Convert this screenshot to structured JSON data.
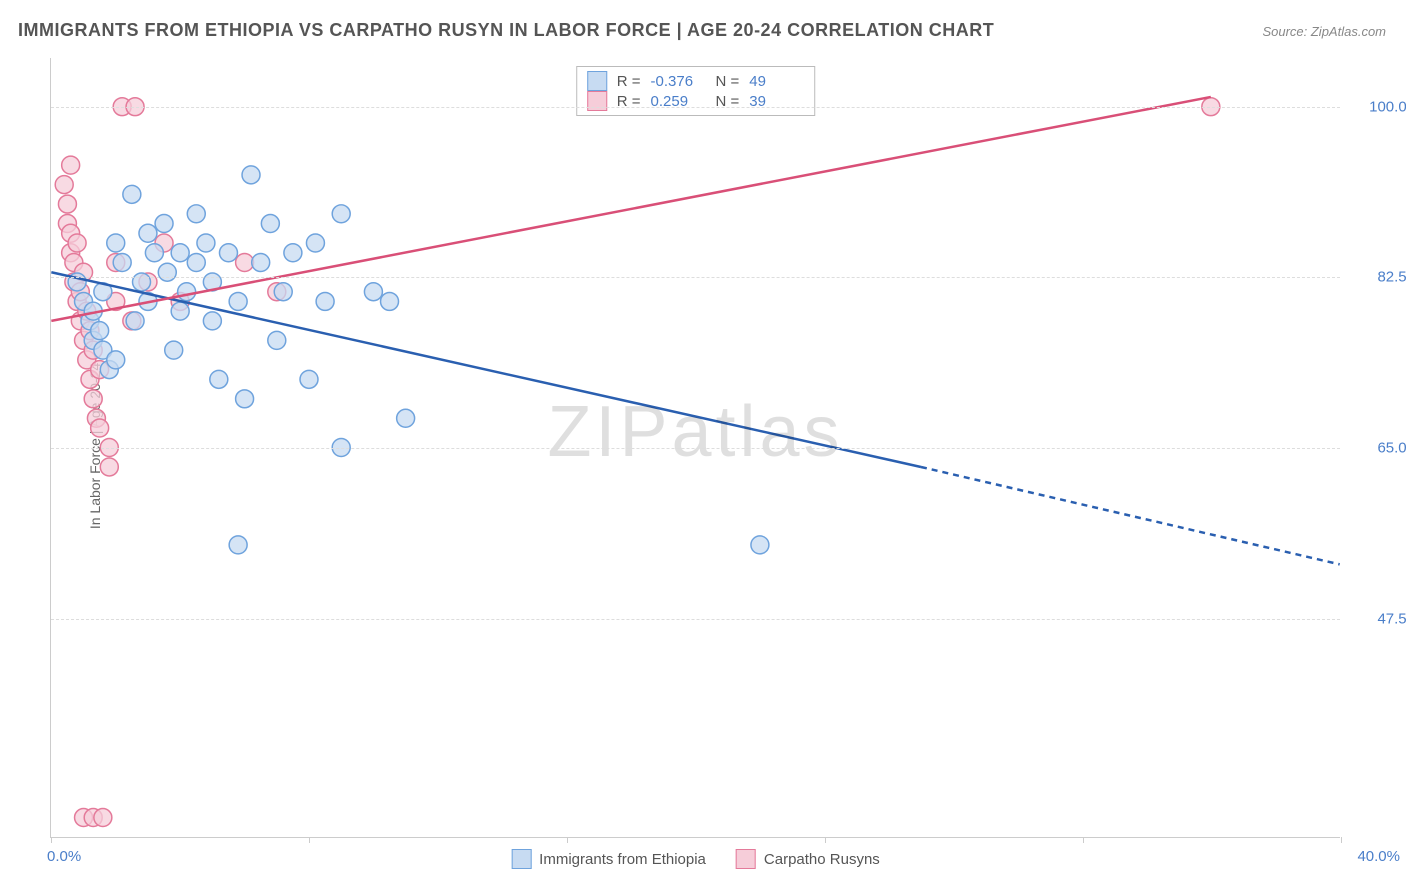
{
  "title": "IMMIGRANTS FROM ETHIOPIA VS CARPATHO RUSYN IN LABOR FORCE | AGE 20-24 CORRELATION CHART",
  "source": "Source: ZipAtlas.com",
  "y_axis_label": "In Labor Force | Age 20-24",
  "watermark": "ZIPatlas",
  "chart": {
    "type": "scatter",
    "xlim": [
      0.0,
      40.0
    ],
    "ylim": [
      25.0,
      105.0
    ],
    "x_tick_positions": [
      0,
      8,
      16,
      24,
      32,
      40
    ],
    "x_corner_left": "0.0%",
    "x_corner_right": "40.0%",
    "y_ticks": [
      {
        "v": 47.5,
        "label": "47.5%"
      },
      {
        "v": 65.0,
        "label": "65.0%"
      },
      {
        "v": 82.5,
        "label": "82.5%"
      },
      {
        "v": 100.0,
        "label": "100.0%"
      }
    ],
    "grid_color": "#dddddd",
    "background_color": "#ffffff",
    "series": {
      "ethiopia": {
        "label": "Immigrants from Ethiopia",
        "marker_fill": "#c7dbf2",
        "marker_stroke": "#6fa3dd",
        "marker_opacity": 0.75,
        "marker_radius": 9,
        "line_color": "#2a5fb0",
        "line_width": 2.5,
        "r": "-0.376",
        "n": "49",
        "trend": {
          "x1": 0.0,
          "y1": 83.0,
          "x2_solid": 27.0,
          "y2_solid": 63.0,
          "x2": 40.0,
          "y2": 53.0
        },
        "points": [
          [
            0.8,
            82
          ],
          [
            1.0,
            80
          ],
          [
            1.2,
            78
          ],
          [
            1.3,
            76
          ],
          [
            1.3,
            79
          ],
          [
            1.5,
            77
          ],
          [
            1.6,
            75
          ],
          [
            1.6,
            81
          ],
          [
            1.8,
            73
          ],
          [
            2.0,
            74
          ],
          [
            2.0,
            86
          ],
          [
            2.2,
            84
          ],
          [
            2.5,
            91
          ],
          [
            2.6,
            78
          ],
          [
            2.8,
            82
          ],
          [
            3.0,
            87
          ],
          [
            3.0,
            80
          ],
          [
            3.2,
            85
          ],
          [
            3.5,
            88
          ],
          [
            3.6,
            83
          ],
          [
            3.8,
            75
          ],
          [
            4.0,
            79
          ],
          [
            4.0,
            85
          ],
          [
            4.2,
            81
          ],
          [
            4.5,
            84
          ],
          [
            4.5,
            89
          ],
          [
            4.8,
            86
          ],
          [
            5.0,
            78
          ],
          [
            5.0,
            82
          ],
          [
            5.2,
            72
          ],
          [
            5.5,
            85
          ],
          [
            5.8,
            80
          ],
          [
            6.0,
            70
          ],
          [
            6.2,
            93
          ],
          [
            6.5,
            84
          ],
          [
            6.8,
            88
          ],
          [
            7.0,
            76
          ],
          [
            7.2,
            81
          ],
          [
            7.5,
            85
          ],
          [
            8.0,
            72
          ],
          [
            8.2,
            86
          ],
          [
            8.5,
            80
          ],
          [
            9.0,
            89
          ],
          [
            9.0,
            65
          ],
          [
            10.0,
            81
          ],
          [
            10.5,
            80
          ],
          [
            5.8,
            55
          ],
          [
            11.0,
            68
          ],
          [
            22.0,
            55
          ]
        ]
      },
      "rusyn": {
        "label": "Carpatho Rusyns",
        "marker_fill": "#f6cdd9",
        "marker_stroke": "#e47a9a",
        "marker_opacity": 0.75,
        "marker_radius": 9,
        "line_color": "#d94f77",
        "line_width": 2.5,
        "r": "0.259",
        "n": "39",
        "trend": {
          "x1": 0.0,
          "y1": 78.0,
          "x2": 36.0,
          "y2": 101.0
        },
        "points": [
          [
            0.4,
            92
          ],
          [
            0.5,
            90
          ],
          [
            0.5,
            88
          ],
          [
            0.6,
            85
          ],
          [
            0.6,
            87
          ],
          [
            0.7,
            82
          ],
          [
            0.7,
            84
          ],
          [
            0.8,
            80
          ],
          [
            0.8,
            86
          ],
          [
            0.9,
            78
          ],
          [
            0.9,
            81
          ],
          [
            1.0,
            76
          ],
          [
            1.0,
            83
          ],
          [
            1.1,
            74
          ],
          [
            1.1,
            79
          ],
          [
            1.2,
            72
          ],
          [
            1.2,
            77
          ],
          [
            1.3,
            70
          ],
          [
            1.3,
            75
          ],
          [
            1.4,
            68
          ],
          [
            1.5,
            73
          ],
          [
            1.5,
            67
          ],
          [
            1.8,
            65
          ],
          [
            1.8,
            63
          ],
          [
            2.0,
            80
          ],
          [
            2.0,
            84
          ],
          [
            2.2,
            100
          ],
          [
            2.6,
            100
          ],
          [
            1.0,
            27
          ],
          [
            1.3,
            27
          ],
          [
            1.6,
            27
          ],
          [
            2.5,
            78
          ],
          [
            3.0,
            82
          ],
          [
            3.5,
            86
          ],
          [
            4.0,
            80
          ],
          [
            6.0,
            84
          ],
          [
            7.0,
            81
          ],
          [
            36.0,
            100
          ],
          [
            0.6,
            94
          ]
        ]
      }
    }
  },
  "legend_top_labels": {
    "r": "R =",
    "n": "N ="
  },
  "legend_bottom": [
    "Immigrants from Ethiopia",
    "Carpatho Rusyns"
  ]
}
